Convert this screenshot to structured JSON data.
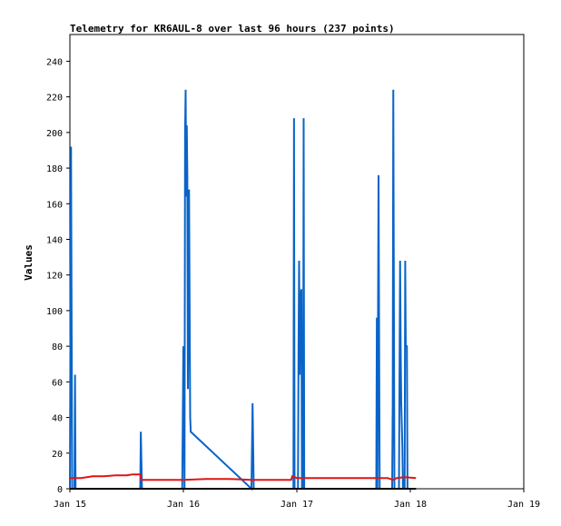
{
  "chart_data": {
    "type": "line",
    "title": "Telemetry for KR6AUL-8 over last 96 hours (237 points)",
    "ylabel": "Values",
    "xlabel": "",
    "ylim": [
      0,
      255
    ],
    "xlim": [
      "Jan 15",
      "Jan 19"
    ],
    "yticks": [
      0,
      20,
      40,
      60,
      80,
      100,
      120,
      140,
      160,
      180,
      200,
      220,
      240
    ],
    "xticks": [
      "Jan 15",
      "Jan 16",
      "Jan 17",
      "Jan 18",
      "Jan 19"
    ],
    "grid": false,
    "legend": "none",
    "colors": [
      "#0a64c8",
      "#e01414",
      "#000000"
    ],
    "series": [
      {
        "points": [
          [
            0.0,
            0
          ],
          [
            0.01,
            192
          ],
          [
            0.015,
            96
          ],
          [
            0.02,
            0
          ],
          [
            0.04,
            0
          ],
          [
            0.045,
            64
          ],
          [
            0.05,
            0
          ],
          [
            0.62,
            0
          ],
          [
            0.625,
            32
          ],
          [
            0.63,
            16
          ],
          [
            0.635,
            0
          ],
          [
            0.99,
            0
          ],
          [
            1.0,
            80
          ],
          [
            1.005,
            48
          ],
          [
            1.01,
            0
          ],
          [
            1.015,
            200
          ],
          [
            1.02,
            224
          ],
          [
            1.025,
            164
          ],
          [
            1.03,
            204
          ],
          [
            1.035,
            176
          ],
          [
            1.04,
            56
          ],
          [
            1.05,
            168
          ],
          [
            1.06,
            40
          ],
          [
            1.065,
            32
          ],
          [
            1.6,
            0
          ],
          [
            1.61,
            48
          ],
          [
            1.615,
            24
          ],
          [
            1.62,
            0
          ],
          [
            1.97,
            0
          ],
          [
            1.975,
            208
          ],
          [
            1.98,
            0
          ],
          [
            2.01,
            0
          ],
          [
            2.015,
            80
          ],
          [
            2.02,
            128
          ],
          [
            2.025,
            64
          ],
          [
            2.03,
            106
          ],
          [
            2.04,
            112
          ],
          [
            2.045,
            0
          ],
          [
            2.05,
            16
          ],
          [
            2.055,
            0
          ],
          [
            2.06,
            208
          ],
          [
            2.065,
            0
          ],
          [
            2.7,
            0
          ],
          [
            2.705,
            96
          ],
          [
            2.71,
            0
          ],
          [
            2.72,
            176
          ],
          [
            2.725,
            88
          ],
          [
            2.73,
            0
          ],
          [
            2.84,
            0
          ],
          [
            2.845,
            48
          ],
          [
            2.85,
            224
          ],
          [
            2.855,
            112
          ],
          [
            2.86,
            0
          ],
          [
            2.9,
            0
          ],
          [
            2.91,
            128
          ],
          [
            2.915,
            80
          ],
          [
            2.92,
            48
          ],
          [
            2.93,
            24
          ],
          [
            2.935,
            0
          ],
          [
            2.95,
            0
          ],
          [
            2.955,
            128
          ],
          [
            2.96,
            80
          ],
          [
            2.97,
            80
          ],
          [
            2.975,
            0
          ],
          [
            3.05,
            0
          ]
        ]
      },
      {
        "points": [
          [
            0.0,
            6
          ],
          [
            0.1,
            6
          ],
          [
            0.2,
            7
          ],
          [
            0.3,
            7
          ],
          [
            0.4,
            7.5
          ],
          [
            0.5,
            7.5
          ],
          [
            0.55,
            8
          ],
          [
            0.62,
            8
          ],
          [
            0.63,
            5
          ],
          [
            0.8,
            5
          ],
          [
            1.0,
            5
          ],
          [
            1.2,
            5.5
          ],
          [
            1.4,
            5.5
          ],
          [
            1.6,
            5
          ],
          [
            1.8,
            5
          ],
          [
            1.95,
            5
          ],
          [
            1.96,
            7
          ],
          [
            2.0,
            6
          ],
          [
            2.1,
            6
          ],
          [
            2.2,
            6
          ],
          [
            2.4,
            6
          ],
          [
            2.6,
            6
          ],
          [
            2.8,
            6
          ],
          [
            2.85,
            5
          ],
          [
            2.88,
            6
          ],
          [
            2.95,
            6.5
          ],
          [
            3.05,
            6
          ]
        ]
      },
      {
        "points": [
          [
            0.0,
            0
          ],
          [
            3.05,
            0
          ]
        ]
      }
    ]
  }
}
